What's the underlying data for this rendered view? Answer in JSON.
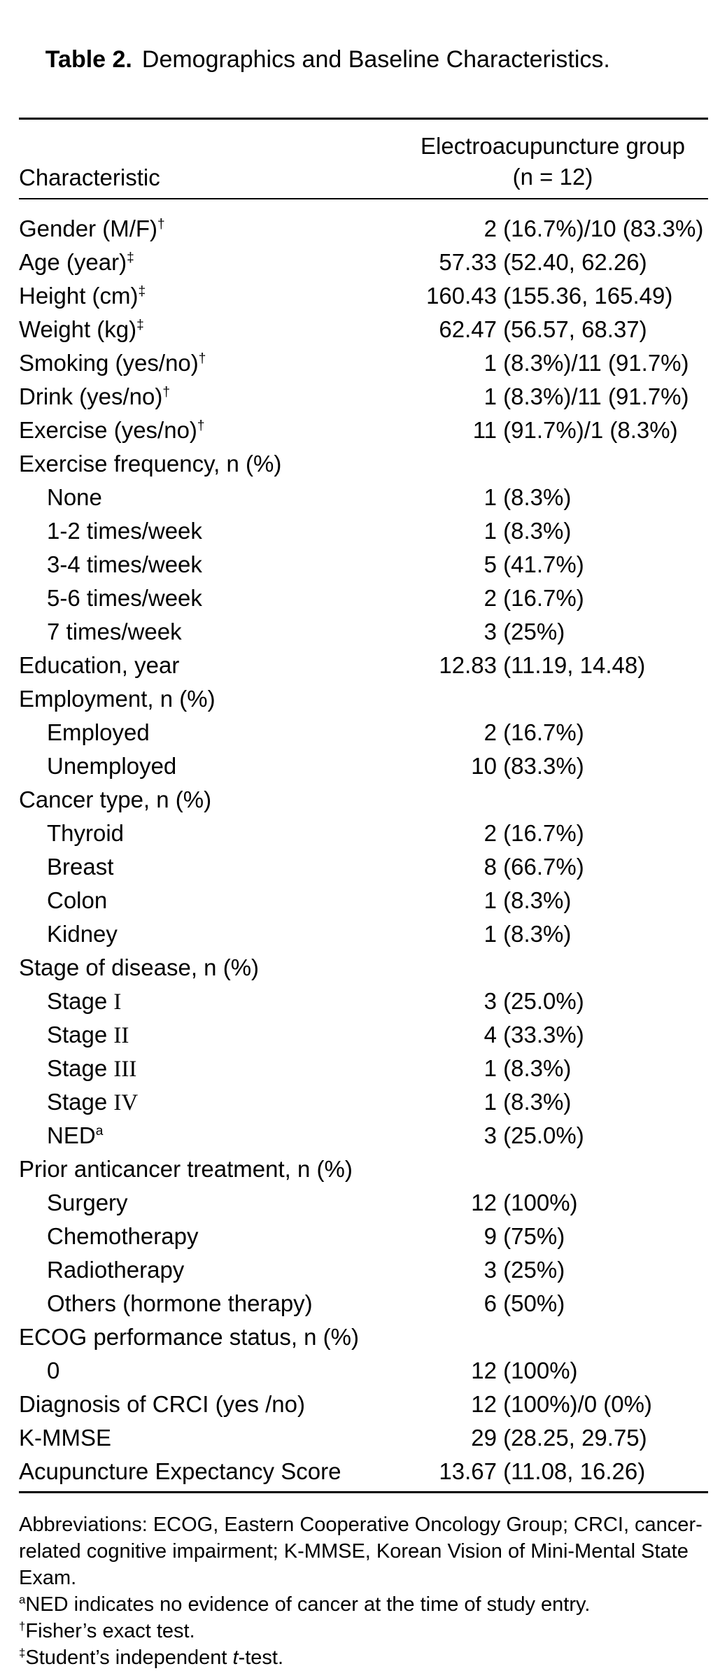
{
  "title": {
    "bold": "Table 2.",
    "rest": "Demographics and Baseline Characteristics."
  },
  "header": {
    "col1": "Characteristic",
    "col2_line1": "Electroacupuncture group",
    "col2_line2": "(n = 12)"
  },
  "rows": [
    {
      "label": "Gender (M/F)",
      "sup": "†",
      "indent": 0,
      "v1": "2",
      "v2": " (16.7%)/10 (83.3%)"
    },
    {
      "label": "Age (year)",
      "sup": "‡",
      "indent": 0,
      "v1": "57.33",
      "v2": " (52.40, 62.26)"
    },
    {
      "label": "Height (cm)",
      "sup": "‡",
      "indent": 0,
      "v1": "160.43",
      "v2": " (155.36, 165.49)"
    },
    {
      "label": "Weight (kg)",
      "sup": "‡",
      "indent": 0,
      "v1": "62.47",
      "v2": " (56.57, 68.37)"
    },
    {
      "label": "Smoking (yes/no)",
      "sup": "†",
      "indent": 0,
      "v1": "1",
      "v2": " (8.3%)/11 (91.7%)"
    },
    {
      "label": "Drink (yes/no)",
      "sup": "†",
      "indent": 0,
      "v1": "1",
      "v2": " (8.3%)/11 (91.7%)"
    },
    {
      "label": "Exercise (yes/no)",
      "sup": "†",
      "indent": 0,
      "v1": "11",
      "v2": " (91.7%)/1 (8.3%)"
    },
    {
      "label": "Exercise frequency, n (%)",
      "indent": 0,
      "v1": "",
      "v2": ""
    },
    {
      "label": "None",
      "indent": 1,
      "v1": "1",
      "v2": " (8.3%)"
    },
    {
      "label": "1-2 times/week",
      "indent": 1,
      "v1": "1",
      "v2": " (8.3%)"
    },
    {
      "label": "3-4 times/week",
      "indent": 1,
      "v1": "5",
      "v2": " (41.7%)"
    },
    {
      "label": "5-6 times/week",
      "indent": 1,
      "v1": "2",
      "v2": " (16.7%)"
    },
    {
      "label": "7 times/week",
      "indent": 1,
      "v1": "3",
      "v2": " (25%)"
    },
    {
      "label": "Education, year",
      "indent": 0,
      "v1": "12.83",
      "v2": " (11.19, 14.48)"
    },
    {
      "label": "Employment, n (%)",
      "indent": 0,
      "v1": "",
      "v2": ""
    },
    {
      "label": "Employed",
      "indent": 1,
      "v1": "2",
      "v2": " (16.7%)"
    },
    {
      "label": "Unemployed",
      "indent": 1,
      "v1": "10",
      "v2": " (83.3%)"
    },
    {
      "label": "Cancer type, n (%)",
      "indent": 0,
      "v1": "",
      "v2": ""
    },
    {
      "label": "Thyroid",
      "indent": 1,
      "v1": "2",
      "v2": " (16.7%)"
    },
    {
      "label": "Breast",
      "indent": 1,
      "v1": "8",
      "v2": " (66.7%)"
    },
    {
      "label": "Colon",
      "indent": 1,
      "v1": "1",
      "v2": " (8.3%)"
    },
    {
      "label": "Kidney",
      "indent": 1,
      "v1": "1",
      "v2": " (8.3%)"
    },
    {
      "label": "Stage of disease, n (%)",
      "indent": 0,
      "v1": "",
      "v2": ""
    },
    {
      "label": "Stage ",
      "roman": "I",
      "indent": 1,
      "v1": "3",
      "v2": " (25.0%)"
    },
    {
      "label": "Stage ",
      "roman": "II",
      "indent": 1,
      "v1": "4",
      "v2": " (33.3%)"
    },
    {
      "label": "Stage ",
      "roman": "III",
      "indent": 1,
      "v1": "1",
      "v2": " (8.3%)"
    },
    {
      "label": "Stage ",
      "roman": "IV",
      "indent": 1,
      "v1": "1",
      "v2": " (8.3%)"
    },
    {
      "label": "NED",
      "sup": "a",
      "indent": 1,
      "v1": "3",
      "v2": " (25.0%)"
    },
    {
      "label": "Prior anticancer treatment, n (%)",
      "indent": 0,
      "v1": "",
      "v2": ""
    },
    {
      "label": "Surgery",
      "indent": 1,
      "v1": "12",
      "v2": " (100%)"
    },
    {
      "label": "Chemotherapy",
      "indent": 1,
      "v1": "9",
      "v2": " (75%)"
    },
    {
      "label": "Radiotherapy",
      "indent": 1,
      "v1": "3",
      "v2": " (25%)"
    },
    {
      "label": "Others (hormone therapy)",
      "indent": 1,
      "v1": "6",
      "v2": " (50%)"
    },
    {
      "label": "ECOG performance status, n (%)",
      "indent": 0,
      "v1": "",
      "v2": ""
    },
    {
      "label": "0",
      "indent": 1,
      "v1": "12",
      "v2": " (100%)"
    },
    {
      "label": "Diagnosis of CRCI (yes /no)",
      "indent": 0,
      "v1": "12",
      "v2": " (100%)/0 (0%)"
    },
    {
      "label": "K-MMSE",
      "indent": 0,
      "v1": "29",
      "v2": " (28.25, 29.75)"
    },
    {
      "label": "Acupuncture Expectancy Score",
      "indent": 0,
      "v1": "13.67",
      "v2": " (11.08, 16.26)"
    }
  ],
  "footnotes": [
    {
      "sup": "",
      "text": "Abbreviations: ECOG, Eastern Cooperative Oncology Group; CRCI, cancer-related cognitive impairment; K-MMSE, Korean Vision of Mini-Mental State Exam.",
      "italic": "",
      "post": ""
    },
    {
      "sup": "a",
      "text": "NED indicates no evidence of cancer at the time of study entry.",
      "italic": "",
      "post": ""
    },
    {
      "sup": "†",
      "text": "Fisher’s exact test.",
      "italic": "",
      "post": ""
    },
    {
      "sup": "‡",
      "text": "Student’s independent ",
      "italic": "t",
      "post": "-test."
    }
  ],
  "colors": {
    "background": "#ffffff",
    "text": "#000000",
    "rule": "#000000"
  }
}
